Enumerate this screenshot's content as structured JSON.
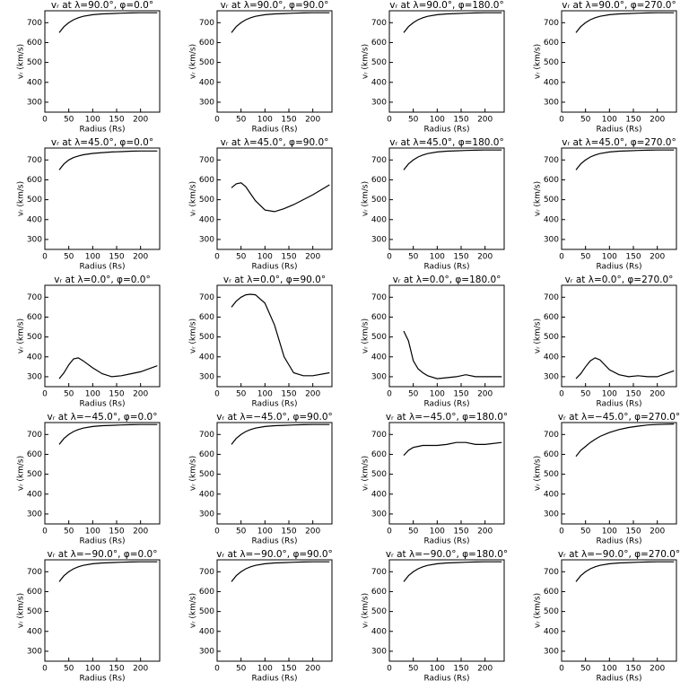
{
  "chart_data": [
    {
      "type": "line",
      "title": "vᵣ at λ=90.0°, φ=0.0°",
      "xlabel": "Radius (Rs)",
      "ylabel": "vᵣ (km/s)",
      "color": "#000000",
      "x": [
        30,
        40,
        50,
        60,
        70,
        80,
        100,
        120,
        140,
        160,
        180,
        200,
        235
      ],
      "values": [
        650,
        680,
        700,
        715,
        725,
        732,
        740,
        744,
        746,
        748,
        749,
        750,
        750
      ],
      "xlim": [
        0,
        240
      ],
      "ylim": [
        250,
        760
      ],
      "xticks": [
        0,
        50,
        100,
        150,
        200
      ],
      "yticks": [
        300,
        400,
        500,
        600,
        700
      ]
    },
    {
      "type": "line",
      "title": "vᵣ at λ=90.0°, φ=90.0°",
      "xlabel": "Radius (Rs)",
      "ylabel": "vᵣ (km/s)",
      "color": "#000000",
      "x": [
        30,
        40,
        50,
        60,
        70,
        80,
        100,
        120,
        140,
        160,
        180,
        200,
        235
      ],
      "values": [
        650,
        680,
        700,
        715,
        725,
        732,
        740,
        744,
        746,
        748,
        749,
        750,
        750
      ],
      "xlim": [
        0,
        240
      ],
      "ylim": [
        250,
        760
      ],
      "xticks": [
        0,
        50,
        100,
        150,
        200
      ],
      "yticks": [
        300,
        400,
        500,
        600,
        700
      ]
    },
    {
      "type": "line",
      "title": "vᵣ at λ=90.0°, φ=180.0°",
      "xlabel": "Radius (Rs)",
      "ylabel": "vᵣ (km/s)",
      "color": "#000000",
      "x": [
        30,
        40,
        50,
        60,
        70,
        80,
        100,
        120,
        140,
        160,
        180,
        200,
        235
      ],
      "values": [
        650,
        680,
        700,
        715,
        725,
        732,
        740,
        744,
        746,
        748,
        749,
        750,
        750
      ],
      "xlim": [
        0,
        240
      ],
      "ylim": [
        250,
        760
      ],
      "xticks": [
        0,
        50,
        100,
        150,
        200
      ],
      "yticks": [
        300,
        400,
        500,
        600,
        700
      ]
    },
    {
      "type": "line",
      "title": "vᵣ at λ=90.0°, φ=270.0°",
      "xlabel": "Radius (Rs)",
      "ylabel": "vᵣ (km/s)",
      "color": "#000000",
      "x": [
        30,
        40,
        50,
        60,
        70,
        80,
        100,
        120,
        140,
        160,
        180,
        200,
        235
      ],
      "values": [
        650,
        680,
        700,
        715,
        725,
        732,
        740,
        744,
        746,
        748,
        749,
        750,
        750
      ],
      "xlim": [
        0,
        240
      ],
      "ylim": [
        250,
        760
      ],
      "xticks": [
        0,
        50,
        100,
        150,
        200
      ],
      "yticks": [
        300,
        400,
        500,
        600,
        700
      ]
    },
    {
      "type": "line",
      "title": "vᵣ at λ=45.0°, φ=0.0°",
      "xlabel": "Radius (Rs)",
      "ylabel": "vᵣ (km/s)",
      "color": "#000000",
      "x": [
        30,
        40,
        50,
        60,
        70,
        80,
        100,
        120,
        140,
        160,
        180,
        200,
        235
      ],
      "values": [
        650,
        680,
        700,
        712,
        720,
        726,
        733,
        737,
        740,
        742,
        744,
        745,
        745
      ],
      "xlim": [
        0,
        240
      ],
      "ylim": [
        250,
        760
      ],
      "xticks": [
        0,
        50,
        100,
        150,
        200
      ],
      "yticks": [
        300,
        400,
        500,
        600,
        700
      ]
    },
    {
      "type": "line",
      "title": "vᵣ at λ=45.0°, φ=90.0°",
      "xlabel": "Radius (Rs)",
      "ylabel": "vᵣ (km/s)",
      "color": "#000000",
      "x": [
        30,
        40,
        50,
        60,
        70,
        80,
        100,
        120,
        140,
        160,
        180,
        200,
        235
      ],
      "values": [
        560,
        580,
        585,
        565,
        530,
        495,
        448,
        440,
        455,
        475,
        500,
        525,
        575
      ],
      "xlim": [
        0,
        240
      ],
      "ylim": [
        250,
        760
      ],
      "xticks": [
        0,
        50,
        100,
        150,
        200
      ],
      "yticks": [
        300,
        400,
        500,
        600,
        700
      ]
    },
    {
      "type": "line",
      "title": "vᵣ at λ=45.0°, φ=180.0°",
      "xlabel": "Radius (Rs)",
      "ylabel": "vᵣ (km/s)",
      "color": "#000000",
      "x": [
        30,
        40,
        50,
        60,
        70,
        80,
        100,
        120,
        140,
        160,
        180,
        200,
        235
      ],
      "values": [
        650,
        680,
        700,
        715,
        725,
        732,
        740,
        744,
        746,
        748,
        749,
        750,
        750
      ],
      "xlim": [
        0,
        240
      ],
      "ylim": [
        250,
        760
      ],
      "xticks": [
        0,
        50,
        100,
        150,
        200
      ],
      "yticks": [
        300,
        400,
        500,
        600,
        700
      ]
    },
    {
      "type": "line",
      "title": "vᵣ at λ=45.0°, φ=270.0°",
      "xlabel": "Radius (Rs)",
      "ylabel": "vᵣ (km/s)",
      "color": "#000000",
      "x": [
        30,
        40,
        50,
        60,
        70,
        80,
        100,
        120,
        140,
        160,
        180,
        200,
        235
      ],
      "values": [
        650,
        680,
        700,
        715,
        725,
        732,
        740,
        744,
        746,
        748,
        749,
        750,
        750
      ],
      "xlim": [
        0,
        240
      ],
      "ylim": [
        250,
        760
      ],
      "xticks": [
        0,
        50,
        100,
        150,
        200
      ],
      "yticks": [
        300,
        400,
        500,
        600,
        700
      ]
    },
    {
      "type": "line",
      "title": "vᵣ at λ=0.0°, φ=0.0°",
      "xlabel": "Radius (Rs)",
      "ylabel": "vᵣ (km/s)",
      "color": "#000000",
      "x": [
        30,
        40,
        50,
        60,
        70,
        80,
        100,
        120,
        140,
        160,
        180,
        200,
        235
      ],
      "values": [
        290,
        320,
        360,
        390,
        395,
        380,
        345,
        315,
        300,
        305,
        315,
        325,
        355
      ],
      "xlim": [
        0,
        240
      ],
      "ylim": [
        250,
        760
      ],
      "xticks": [
        0,
        50,
        100,
        150,
        200
      ],
      "yticks": [
        300,
        400,
        500,
        600,
        700
      ]
    },
    {
      "type": "line",
      "title": "vᵣ at λ=0.0°, φ=90.0°",
      "xlabel": "Radius (Rs)",
      "ylabel": "vᵣ (km/s)",
      "color": "#000000",
      "x": [
        30,
        40,
        50,
        60,
        70,
        80,
        100,
        120,
        140,
        160,
        180,
        200,
        235
      ],
      "values": [
        650,
        680,
        700,
        712,
        715,
        712,
        670,
        560,
        400,
        320,
        305,
        305,
        320
      ],
      "xlim": [
        0,
        240
      ],
      "ylim": [
        250,
        760
      ],
      "xticks": [
        0,
        50,
        100,
        150,
        200
      ],
      "yticks": [
        300,
        400,
        500,
        600,
        700
      ]
    },
    {
      "type": "line",
      "title": "vᵣ at λ=0.0°, φ=180.0°",
      "xlabel": "Radius (Rs)",
      "ylabel": "vᵣ (km/s)",
      "color": "#000000",
      "x": [
        30,
        40,
        50,
        60,
        70,
        80,
        100,
        120,
        140,
        160,
        180,
        200,
        235
      ],
      "values": [
        530,
        480,
        380,
        340,
        320,
        305,
        290,
        295,
        300,
        310,
        300,
        300,
        300
      ],
      "xlim": [
        0,
        240
      ],
      "ylim": [
        250,
        760
      ],
      "xticks": [
        0,
        50,
        100,
        150,
        200
      ],
      "yticks": [
        300,
        400,
        500,
        600,
        700
      ]
    },
    {
      "type": "line",
      "title": "vᵣ at λ=0.0°, φ=270.0°",
      "xlabel": "Radius (Rs)",
      "ylabel": "vᵣ (km/s)",
      "color": "#000000",
      "x": [
        30,
        40,
        50,
        60,
        70,
        80,
        100,
        120,
        140,
        160,
        180,
        200,
        235
      ],
      "values": [
        290,
        315,
        350,
        380,
        395,
        385,
        335,
        310,
        300,
        305,
        300,
        300,
        330
      ],
      "xlim": [
        0,
        240
      ],
      "ylim": [
        250,
        760
      ],
      "xticks": [
        0,
        50,
        100,
        150,
        200
      ],
      "yticks": [
        300,
        400,
        500,
        600,
        700
      ]
    },
    {
      "type": "line",
      "title": "vᵣ at λ=−45.0°, φ=0.0°",
      "xlabel": "Radius (Rs)",
      "ylabel": "vᵣ (km/s)",
      "color": "#000000",
      "x": [
        30,
        40,
        50,
        60,
        70,
        80,
        100,
        120,
        140,
        160,
        180,
        200,
        235
      ],
      "values": [
        650,
        680,
        700,
        715,
        725,
        732,
        740,
        744,
        746,
        748,
        749,
        750,
        750
      ],
      "xlim": [
        0,
        240
      ],
      "ylim": [
        250,
        760
      ],
      "xticks": [
        0,
        50,
        100,
        150,
        200
      ],
      "yticks": [
        300,
        400,
        500,
        600,
        700
      ]
    },
    {
      "type": "line",
      "title": "vᵣ at λ=−45.0°, φ=90.0°",
      "xlabel": "Radius (Rs)",
      "ylabel": "vᵣ (km/s)",
      "color": "#000000",
      "x": [
        30,
        40,
        50,
        60,
        70,
        80,
        100,
        120,
        140,
        160,
        180,
        200,
        235
      ],
      "values": [
        650,
        680,
        700,
        715,
        725,
        732,
        740,
        744,
        746,
        748,
        749,
        750,
        750
      ],
      "xlim": [
        0,
        240
      ],
      "ylim": [
        250,
        760
      ],
      "xticks": [
        0,
        50,
        100,
        150,
        200
      ],
      "yticks": [
        300,
        400,
        500,
        600,
        700
      ]
    },
    {
      "type": "line",
      "title": "vᵣ at λ=−45.0°, φ=180.0°",
      "xlabel": "Radius (Rs)",
      "ylabel": "vᵣ (km/s)",
      "color": "#000000",
      "x": [
        30,
        40,
        50,
        60,
        70,
        80,
        100,
        120,
        140,
        160,
        180,
        200,
        235
      ],
      "values": [
        595,
        620,
        635,
        640,
        645,
        645,
        645,
        650,
        660,
        660,
        650,
        650,
        660
      ],
      "xlim": [
        0,
        240
      ],
      "ylim": [
        250,
        760
      ],
      "xticks": [
        0,
        50,
        100,
        150,
        200
      ],
      "yticks": [
        300,
        400,
        500,
        600,
        700
      ]
    },
    {
      "type": "line",
      "title": "vᵣ at λ=−45.0°, φ=270.0°",
      "xlabel": "Radius (Rs)",
      "ylabel": "vᵣ (km/s)",
      "color": "#000000",
      "x": [
        30,
        40,
        50,
        60,
        70,
        80,
        100,
        120,
        140,
        160,
        180,
        200,
        235
      ],
      "values": [
        590,
        620,
        640,
        660,
        675,
        690,
        710,
        725,
        735,
        742,
        748,
        750,
        753
      ],
      "xlim": [
        0,
        240
      ],
      "ylim": [
        250,
        760
      ],
      "xticks": [
        0,
        50,
        100,
        150,
        200
      ],
      "yticks": [
        300,
        400,
        500,
        600,
        700
      ]
    },
    {
      "type": "line",
      "title": "vᵣ at λ=−90.0°, φ=0.0°",
      "xlabel": "Radius (Rs)",
      "ylabel": "vᵣ (km/s)",
      "color": "#000000",
      "x": [
        30,
        40,
        50,
        60,
        70,
        80,
        100,
        120,
        140,
        160,
        180,
        200,
        235
      ],
      "values": [
        650,
        680,
        700,
        715,
        725,
        732,
        740,
        744,
        746,
        748,
        749,
        750,
        750
      ],
      "xlim": [
        0,
        240
      ],
      "ylim": [
        250,
        760
      ],
      "xticks": [
        0,
        50,
        100,
        150,
        200
      ],
      "yticks": [
        300,
        400,
        500,
        600,
        700
      ]
    },
    {
      "type": "line",
      "title": "vᵣ at λ=−90.0°, φ=90.0°",
      "xlabel": "Radius (Rs)",
      "ylabel": "vᵣ (km/s)",
      "color": "#000000",
      "x": [
        30,
        40,
        50,
        60,
        70,
        80,
        100,
        120,
        140,
        160,
        180,
        200,
        235
      ],
      "values": [
        650,
        680,
        700,
        715,
        725,
        732,
        740,
        744,
        746,
        748,
        749,
        750,
        750
      ],
      "xlim": [
        0,
        240
      ],
      "ylim": [
        250,
        760
      ],
      "xticks": [
        0,
        50,
        100,
        150,
        200
      ],
      "yticks": [
        300,
        400,
        500,
        600,
        700
      ]
    },
    {
      "type": "line",
      "title": "vᵣ at λ=−90.0°, φ=180.0°",
      "xlabel": "Radius (Rs)",
      "ylabel": "vᵣ (km/s)",
      "color": "#000000",
      "x": [
        30,
        40,
        50,
        60,
        70,
        80,
        100,
        120,
        140,
        160,
        180,
        200,
        235
      ],
      "values": [
        650,
        680,
        700,
        715,
        725,
        732,
        740,
        744,
        746,
        748,
        749,
        750,
        750
      ],
      "xlim": [
        0,
        240
      ],
      "ylim": [
        250,
        760
      ],
      "xticks": [
        0,
        50,
        100,
        150,
        200
      ],
      "yticks": [
        300,
        400,
        500,
        600,
        700
      ]
    },
    {
      "type": "line",
      "title": "vᵣ at λ=−90.0°, φ=270.0°",
      "xlabel": "Radius (Rs)",
      "ylabel": "vᵣ (km/s)",
      "color": "#000000",
      "x": [
        30,
        40,
        50,
        60,
        70,
        80,
        100,
        120,
        140,
        160,
        180,
        200,
        235
      ],
      "values": [
        650,
        680,
        700,
        715,
        725,
        732,
        740,
        744,
        746,
        748,
        749,
        750,
        750
      ],
      "xlim": [
        0,
        240
      ],
      "ylim": [
        250,
        760
      ],
      "xticks": [
        0,
        50,
        100,
        150,
        200
      ],
      "yticks": [
        300,
        400,
        500,
        600,
        700
      ]
    }
  ]
}
